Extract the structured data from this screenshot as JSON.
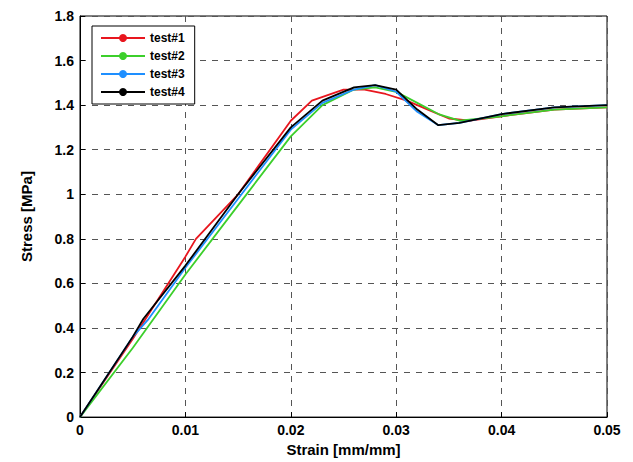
{
  "chart_data": {
    "type": "line",
    "x_label": "Strain [mm/mm]",
    "y_label": "Stress [MPa]",
    "xlim": [
      0,
      0.05
    ],
    "xticks": [
      0,
      0.01,
      0.02,
      0.03,
      0.04,
      0.05
    ],
    "ylim": [
      0,
      1.8
    ],
    "yticks": [
      0,
      0.2,
      0.4,
      0.6,
      0.8,
      1,
      1.2,
      1.4,
      1.6,
      1.8
    ],
    "grid": true,
    "legend": "top-left",
    "series": [
      {
        "name": "test#1",
        "color": "#e8161e",
        "x": [
          0,
          0.005,
          0.01,
          0.011,
          0.015,
          0.02,
          0.022,
          0.025,
          0.027,
          0.029,
          0.031,
          0.033,
          0.035,
          0.037,
          0.04,
          0.045,
          0.05
        ],
        "values": [
          0,
          0.35,
          0.72,
          0.8,
          1.0,
          1.33,
          1.42,
          1.47,
          1.47,
          1.45,
          1.42,
          1.38,
          1.34,
          1.33,
          1.35,
          1.38,
          1.39
        ]
      },
      {
        "name": "test#2",
        "color": "#3ccf2b",
        "x": [
          0,
          0.005,
          0.01,
          0.015,
          0.02,
          0.023,
          0.026,
          0.028,
          0.03,
          0.032,
          0.034,
          0.036,
          0.04,
          0.045,
          0.05
        ],
        "values": [
          0,
          0.31,
          0.64,
          0.95,
          1.26,
          1.4,
          1.47,
          1.48,
          1.46,
          1.41,
          1.36,
          1.33,
          1.35,
          1.38,
          1.39
        ]
      },
      {
        "name": "test#3",
        "color": "#1e8fff",
        "x": [
          0,
          0.005,
          0.0065,
          0.01,
          0.015,
          0.02,
          0.023,
          0.026,
          0.028,
          0.03,
          0.032,
          0.034,
          0.036,
          0.04,
          0.045,
          0.05
        ],
        "values": [
          0,
          0.36,
          0.44,
          0.67,
          0.98,
          1.29,
          1.41,
          1.47,
          1.49,
          1.46,
          1.37,
          1.31,
          1.32,
          1.36,
          1.39,
          1.4
        ]
      },
      {
        "name": "test#4",
        "color": "#000000",
        "x": [
          0,
          0.005,
          0.006,
          0.01,
          0.015,
          0.02,
          0.023,
          0.026,
          0.028,
          0.03,
          0.032,
          0.034,
          0.036,
          0.04,
          0.045,
          0.05
        ],
        "values": [
          0,
          0.36,
          0.44,
          0.68,
          1.0,
          1.3,
          1.42,
          1.48,
          1.49,
          1.47,
          1.38,
          1.31,
          1.32,
          1.36,
          1.39,
          1.4
        ]
      }
    ]
  }
}
